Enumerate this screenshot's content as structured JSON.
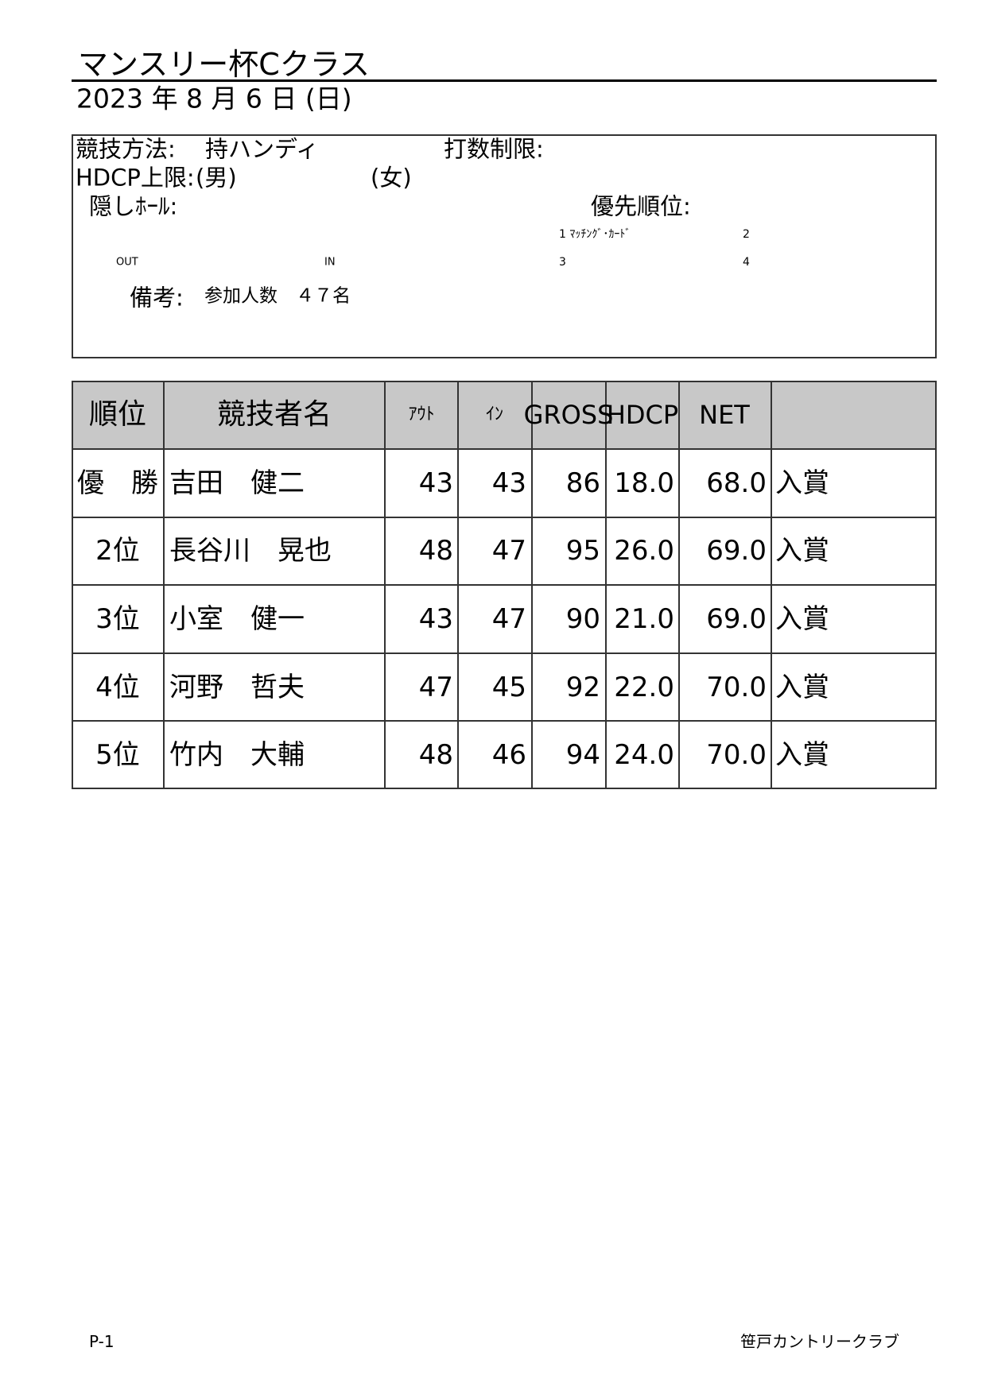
{
  "header": {
    "title": "マンスリー杯Cクラス",
    "date": "2023 年 8 月 6 日 (日)"
  },
  "info": {
    "method_label": "競技方法:",
    "method": "持ハンディ",
    "stroke_limit_label": "打数制限:",
    "hdcp_label": "HDCP上限:",
    "male": "(男)",
    "female": "(女)",
    "hidden_label": "隠しﾎｰﾙ:",
    "priority_label": "優先順位:",
    "priority": [
      "1 ﾏｯﾁﾝｸﾞ･ｶｰﾄﾞ",
      "2",
      "3",
      "4"
    ],
    "out": "OUT",
    "in": "IN",
    "remarks_label": "備考:",
    "remarks": "参加人数　４７名"
  },
  "table": {
    "headers": [
      "順位",
      "競技者名",
      "ｱｳﾄ",
      "ｲﾝ",
      "GROSS",
      "HDCP",
      "NET"
    ],
    "rows": [
      [
        "優　勝",
        "吉田　健二",
        43,
        43,
        86,
        "18.0",
        "68.0",
        "入賞"
      ],
      [
        "2位",
        "長谷川　晃也",
        48,
        47,
        95,
        "26.0",
        "69.0",
        "入賞"
      ],
      [
        "3位",
        "小室　健一",
        43,
        47,
        90,
        "21.0",
        "69.0",
        "入賞"
      ],
      [
        "4位",
        "河野　哲夫",
        47,
        45,
        92,
        "22.0",
        "70.0",
        "入賞"
      ],
      [
        "5位",
        "竹内　大輔",
        48,
        46,
        94,
        "24.0",
        "70.0",
        "入賞"
      ]
    ]
  },
  "footer": {
    "page": "P-1",
    "club": "笹戸カントリークラブ"
  }
}
